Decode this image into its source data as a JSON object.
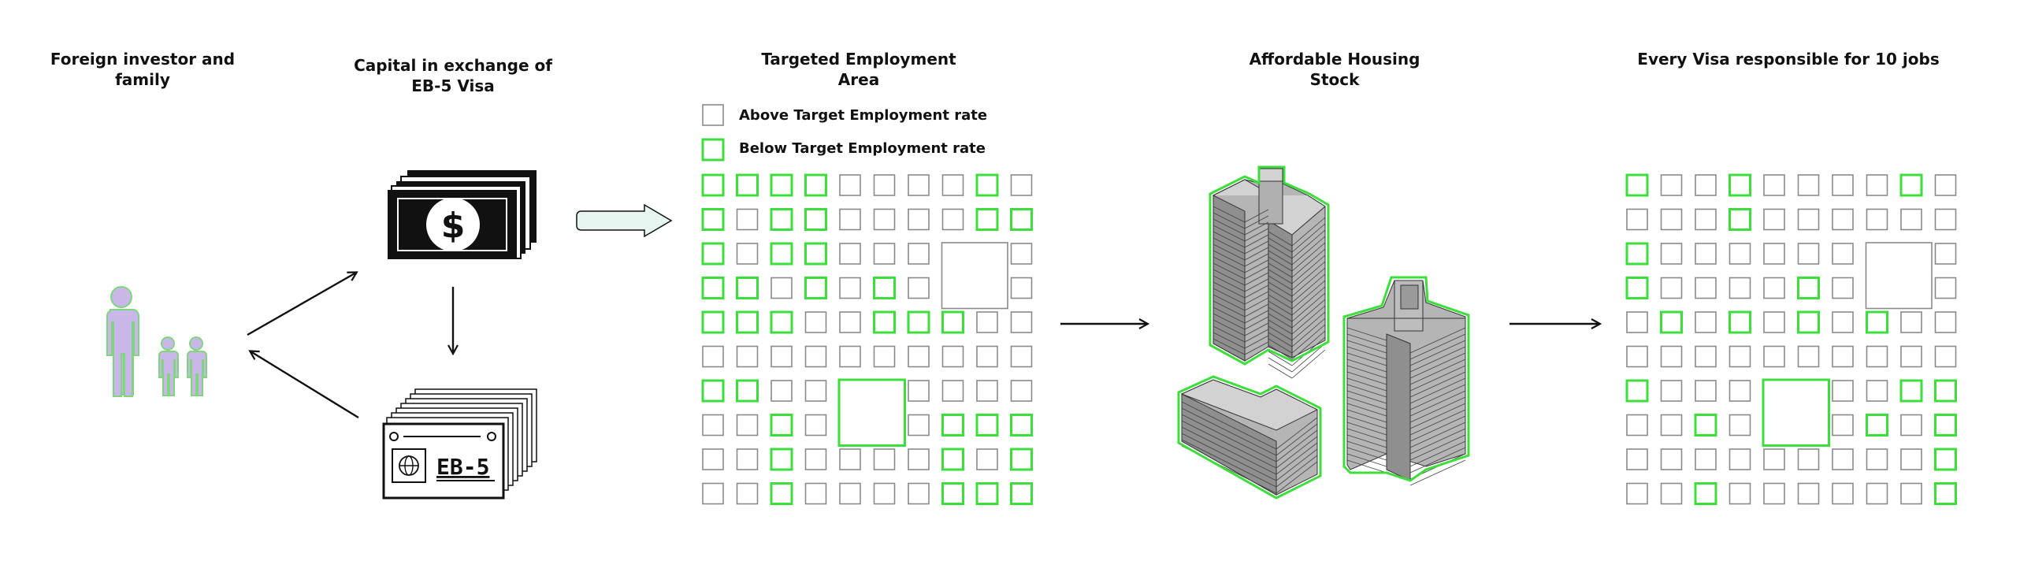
{
  "titles": {
    "investor": [
      "Foreign investor and",
      "family"
    ],
    "capital": [
      "Capital in exchange of",
      "EB-5 Visa"
    ],
    "tea": [
      "Targeted Employment",
      "Area"
    ],
    "housing": [
      "Affordable Housing",
      "Stock"
    ],
    "jobs": [
      "Every Visa responsible for 10 jobs"
    ]
  },
  "legend": {
    "above": "Above Target Employment rate",
    "below": "Below Target Employment rate"
  },
  "money": {
    "symbol": "$"
  },
  "visa_card": {
    "text": "EB-5"
  },
  "colors": {
    "highlight": "#3cde3c",
    "people_fill": "#c9b7e8",
    "people_outline": "#7fd67f",
    "cell_stroke": "#8a8a8a",
    "teal_arrow": "#e6f5f0"
  },
  "icons": [
    "people-icon",
    "banknote-stack-icon",
    "visa-card-stack-icon",
    "globe-icon",
    "block-arrow-icon",
    "building-icon"
  ],
  "tea_grid": {
    "rows": 10,
    "cols": 10,
    "highlighted": [
      [
        0,
        0
      ],
      [
        0,
        1
      ],
      [
        0,
        2
      ],
      [
        0,
        3
      ],
      [
        0,
        8
      ],
      [
        1,
        0
      ],
      [
        1,
        2
      ],
      [
        1,
        3
      ],
      [
        1,
        8
      ],
      [
        1,
        9
      ],
      [
        2,
        0
      ],
      [
        2,
        2
      ],
      [
        2,
        3
      ],
      [
        3,
        0
      ],
      [
        3,
        1
      ],
      [
        3,
        3
      ],
      [
        3,
        5
      ],
      [
        4,
        0
      ],
      [
        4,
        1
      ],
      [
        4,
        2
      ],
      [
        4,
        5
      ],
      [
        4,
        6
      ],
      [
        4,
        7
      ],
      [
        6,
        0
      ],
      [
        6,
        1
      ],
      [
        7,
        2
      ],
      [
        7,
        7
      ],
      [
        7,
        8
      ],
      [
        7,
        9
      ],
      [
        8,
        2
      ],
      [
        8,
        7
      ],
      [
        8,
        9
      ],
      [
        9,
        2
      ],
      [
        9,
        7
      ],
      [
        9,
        8
      ],
      [
        9,
        9
      ]
    ],
    "blocks": [
      {
        "row": 2,
        "col": 7,
        "span": 2,
        "highlight": false
      },
      {
        "row": 6,
        "col": 4,
        "span": 2,
        "highlight": true
      }
    ]
  },
  "jobs_grid": {
    "rows": 10,
    "cols": 10,
    "highlighted": [
      [
        0,
        0
      ],
      [
        0,
        3
      ],
      [
        0,
        8
      ],
      [
        1,
        3
      ],
      [
        2,
        0
      ],
      [
        3,
        0
      ],
      [
        3,
        5
      ],
      [
        4,
        1
      ],
      [
        4,
        3
      ],
      [
        4,
        5
      ],
      [
        4,
        7
      ],
      [
        6,
        0
      ],
      [
        6,
        8
      ],
      [
        6,
        9
      ],
      [
        7,
        2
      ],
      [
        7,
        7
      ],
      [
        7,
        9
      ],
      [
        8,
        9
      ],
      [
        9,
        2
      ],
      [
        9,
        9
      ]
    ],
    "blocks": [
      {
        "row": 2,
        "col": 7,
        "span": 2,
        "highlight": false
      },
      {
        "row": 6,
        "col": 4,
        "span": 2,
        "highlight": true
      }
    ]
  }
}
